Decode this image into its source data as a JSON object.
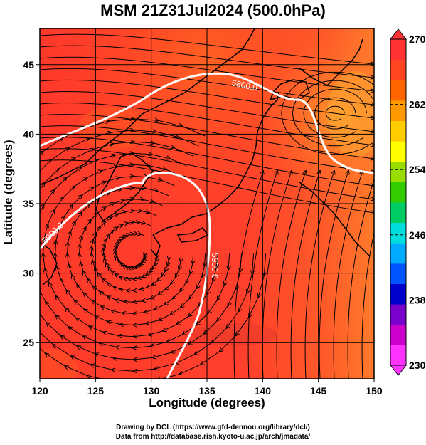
{
  "title": "MSM 21Z31Jul2024 (500.0hPa)",
  "axes": {
    "xlabel": "Longitude (degrees)",
    "ylabel": "Latitude  (degrees)",
    "xlim": [
      120,
      150
    ],
    "ylim": [
      22.4,
      47.6
    ],
    "xticks": [
      "120",
      "125",
      "130",
      "135",
      "140",
      "145",
      "150"
    ],
    "yticks": [
      "25",
      "30",
      "35",
      "40",
      "45"
    ],
    "grid": true
  },
  "colorbar": {
    "ticks": [
      "270",
      "262",
      "254",
      "246",
      "238",
      "230"
    ],
    "min": 230,
    "max": 270,
    "colors": [
      "#ff33ff",
      "#cc00cc",
      "#7a00cc",
      "#0000cc",
      "#0055ff",
      "#00aaff",
      "#00dddd",
      "#00cc66",
      "#33cc00",
      "#99dd00",
      "#ffff00",
      "#ffcc00",
      "#ff9900",
      "#ff6600",
      "#ff4422",
      "#ff3333"
    ]
  },
  "contours": [
    {
      "label": "5800.0"
    },
    {
      "label": "5900.0"
    },
    {
      "label": "5900.0"
    }
  ],
  "credits": {
    "line1": "Drawing by DCL (https://www.gfd-dennou.org/library/dcl/)",
    "line2": "Data from http://database.rish.kyoto-u.ac.jp/arch/jmadata/"
  }
}
